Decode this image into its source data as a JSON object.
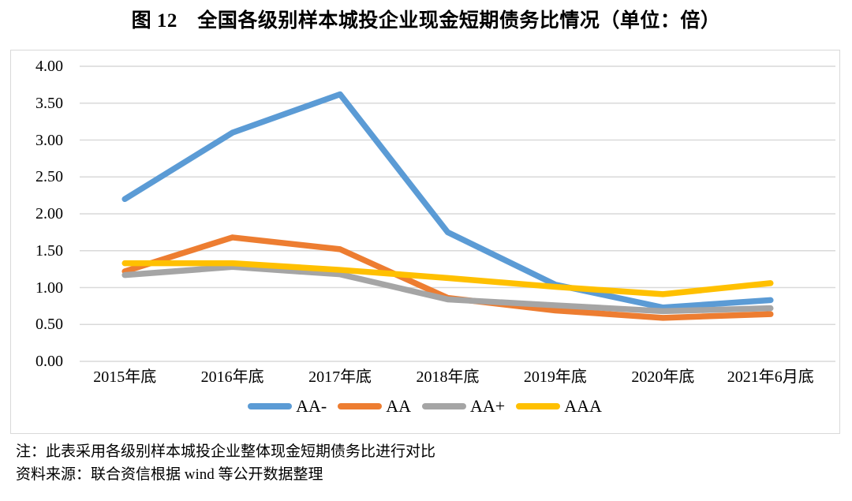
{
  "title": "图 12　全国各级别样本城投企业现金短期债务比情况（单位：倍）",
  "chart_data": {
    "type": "line",
    "categories": [
      "2015年底",
      "2016年底",
      "2017年底",
      "2018年底",
      "2019年底",
      "2020年底",
      "2021年6月底"
    ],
    "series": [
      {
        "name": "AA-",
        "color": "#5B9BD5",
        "values": [
          2.2,
          3.1,
          3.62,
          1.75,
          1.04,
          0.73,
          0.83
        ]
      },
      {
        "name": "AA",
        "color": "#ED7D31",
        "values": [
          1.22,
          1.68,
          1.52,
          0.86,
          0.69,
          0.59,
          0.64
        ]
      },
      {
        "name": "AA+",
        "color": "#A5A5A5",
        "values": [
          1.17,
          1.28,
          1.18,
          0.84,
          0.76,
          0.68,
          0.72
        ]
      },
      {
        "name": "AAA",
        "color": "#FFC000",
        "values": [
          1.33,
          1.33,
          1.24,
          1.13,
          1.01,
          0.91,
          1.06
        ]
      }
    ],
    "title": "图 12　全国各级别样本城投企业现金短期债务比情况（单位：倍）",
    "xlabel": "",
    "ylabel": "",
    "ylim": [
      0,
      4
    ],
    "ytick_step": 0.5,
    "yticks": [
      "4.00",
      "3.50",
      "3.00",
      "2.50",
      "2.00",
      "1.50",
      "1.00",
      "0.50",
      "0.00"
    ],
    "grid": true,
    "gridline_color": "#D9D9D9",
    "frame_color": "#D9D9D9",
    "legend_position": "bottom"
  },
  "notes": {
    "note1": "注：此表采用各级别样本城投企业整体现金短期债务比进行对比",
    "note2": "资料来源：联合资信根据 wind 等公开数据整理"
  }
}
